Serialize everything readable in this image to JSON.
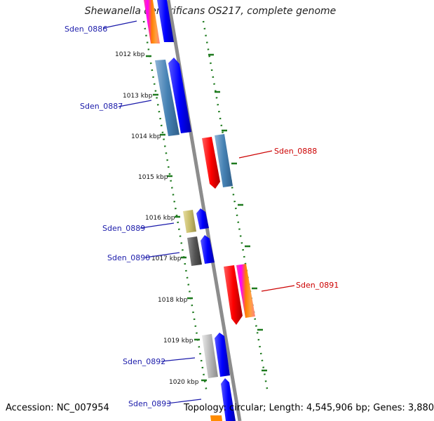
{
  "title": "Shewanella denitrificans OS217, complete genome",
  "footer": {
    "accession": "Accession: NC_007954",
    "summary": "Topology: circular; Length: 4,545,906 bp; Genes: 3,880"
  },
  "ticks": [
    "1012 kbp",
    "1013 kbp",
    "1014 kbp",
    "1015 kbp",
    "1016 kbp",
    "1017 kbp",
    "1018 kbp",
    "1019 kbp",
    "1020 kbp"
  ],
  "genes": {
    "g0886": "Sden_0886",
    "g0887": "Sden_0887",
    "g0888": "Sden_0888",
    "g0889": "Sden_0889",
    "g0890": "Sden_0890",
    "g0891": "Sden_0891",
    "g0892": "Sden_0892",
    "g0893": "Sden_0893"
  },
  "colors": {
    "forward_gene": "#0000ee",
    "reverse_gene": "#ee0000",
    "forward_label": "#1a1aaa",
    "reverse_label": "#cc0000",
    "backbone": "#8c8c8c",
    "tick": "#1e7a1e"
  }
}
